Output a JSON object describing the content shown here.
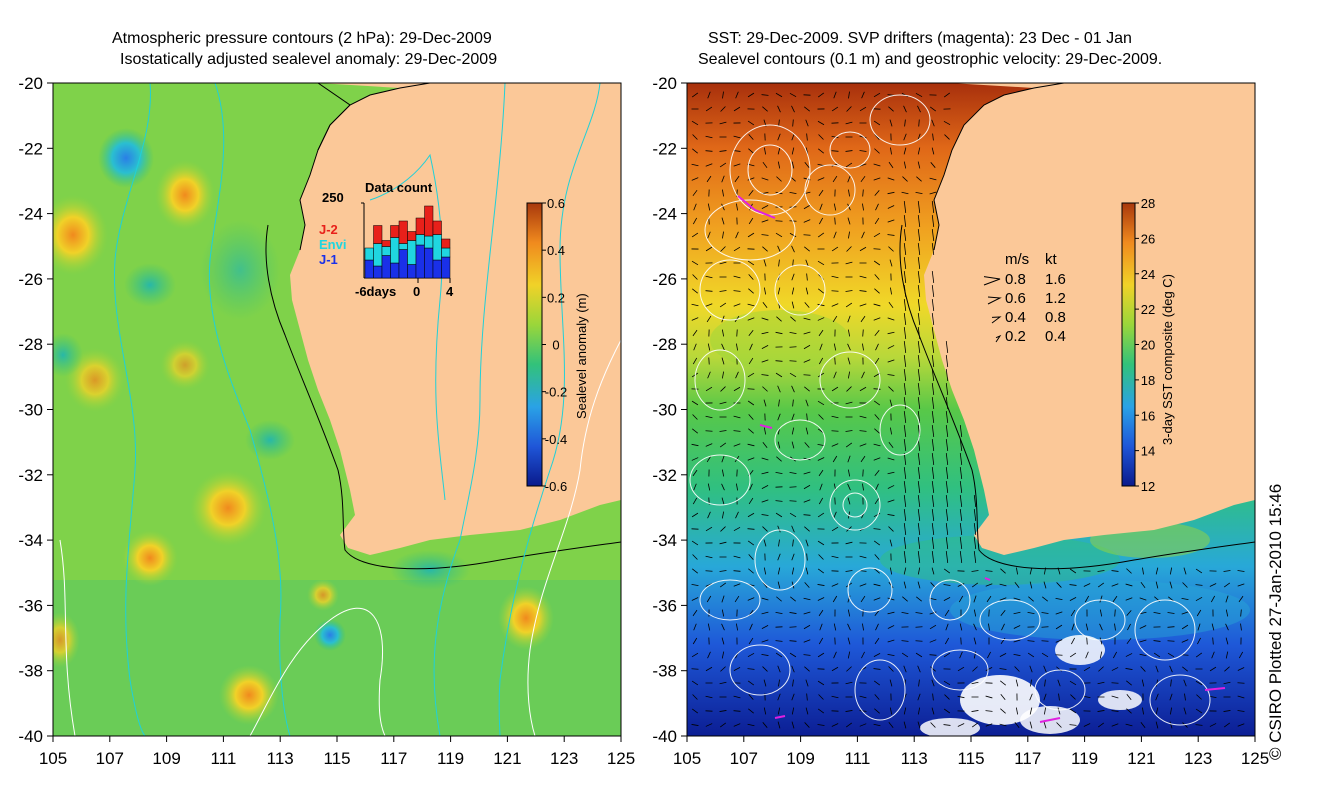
{
  "chart_data": [
    {
      "type": "heatmap",
      "panel": "left",
      "title_lines": [
        "Atmospheric pressure contours (2 hPa): 29-Dec-2009",
        "Isostatically adjusted sealevel anomaly: 29-Dec-2009"
      ],
      "xlim": [
        105,
        125
      ],
      "ylim": [
        -40,
        -20
      ],
      "x_ticks": [
        "105",
        "107",
        "109",
        "111",
        "113",
        "115",
        "117",
        "119",
        "121",
        "123",
        "125"
      ],
      "y_ticks": [
        "-20",
        "-22",
        "-24",
        "-26",
        "-28",
        "-30",
        "-32",
        "-34",
        "-36",
        "-38",
        "-40"
      ],
      "colorbar": {
        "label": "Sealevel anomaly (m)",
        "min": -0.6,
        "max": 0.6,
        "ticks": [
          "0.6",
          "0.4",
          "0.2",
          "0",
          "-0.2",
          "-0.4",
          "-0.6"
        ],
        "colors": [
          "#0a1a8c",
          "#1f56d8",
          "#2aa2e6",
          "#32c27a",
          "#9ad63a",
          "#f0d228",
          "#f08a1e",
          "#a8380c"
        ]
      },
      "inset": {
        "title": "Data count",
        "ymax_label": "250",
        "x_tick_labels": [
          "-6days",
          "0",
          "4"
        ],
        "legend": [
          {
            "name": "J-2",
            "color": "#e8201a"
          },
          {
            "name": "Envi",
            "color": "#20d6e0"
          },
          {
            "name": "J-1",
            "color": "#1a30e8"
          }
        ],
        "days": [
          -6,
          -5,
          -4,
          -3,
          -2,
          -1,
          0,
          1,
          2,
          3
        ],
        "series": [
          {
            "name": "J-1",
            "values": [
              60,
              40,
              75,
              50,
              95,
              45,
              110,
              100,
              60,
              70
            ]
          },
          {
            "name": "Envi",
            "values": [
              40,
              75,
              30,
              85,
              20,
              80,
              35,
              40,
              85,
              30
            ]
          },
          {
            "name": "J-2",
            "values": [
              0,
              60,
              20,
              40,
              75,
              30,
              55,
              100,
              45,
              30
            ]
          }
        ],
        "ylim": [
          0,
          250
        ]
      }
    },
    {
      "type": "heatmap",
      "panel": "right",
      "title_lines": [
        "SST: 29-Dec-2009. SVP drifters (magenta): 23 Dec - 01 Jan",
        "Sealevel contours (0.1 m) and geostrophic velocity: 29-Dec-2009."
      ],
      "xlim": [
        105,
        125
      ],
      "ylim": [
        -40,
        -20
      ],
      "x_ticks": [
        "105",
        "107",
        "109",
        "111",
        "113",
        "115",
        "117",
        "119",
        "121",
        "123",
        "125"
      ],
      "y_ticks": [
        "-20",
        "-22",
        "-24",
        "-26",
        "-28",
        "-30",
        "-32",
        "-34",
        "-36",
        "-38",
        "-40"
      ],
      "colorbar": {
        "label": "3-day SST composite (deg C)",
        "min": 12,
        "max": 28,
        "ticks": [
          "28",
          "26",
          "24",
          "22",
          "20",
          "18",
          "16",
          "14",
          "12"
        ],
        "colors": [
          "#0a1a8c",
          "#1f56d8",
          "#2aa2e6",
          "#32c27a",
          "#9ad63a",
          "#f0d228",
          "#f08a1e",
          "#a8380c"
        ]
      },
      "velocity_legend": {
        "header": [
          "m/s",
          "kt"
        ],
        "rows": [
          {
            "ms": "0.8",
            "kt": "1.6"
          },
          {
            "ms": "0.6",
            "kt": "1.2"
          },
          {
            "ms": "0.4",
            "kt": "0.8"
          },
          {
            "ms": "0.2",
            "kt": "0.4"
          }
        ]
      }
    }
  ],
  "credit": "© CSIRO Plotted 27-Jan-2010 15:46"
}
